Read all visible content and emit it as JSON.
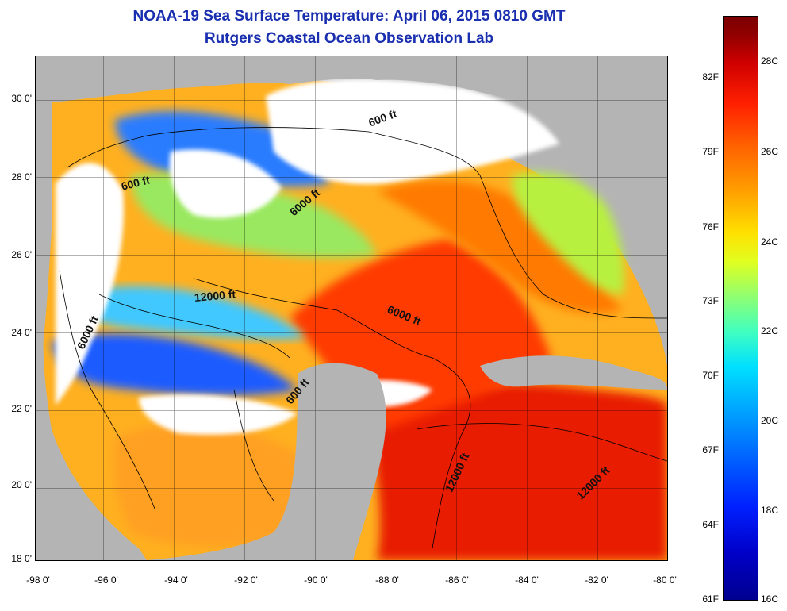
{
  "title": "NOAA-19 Sea Surface Temperature:  April 06, 2015 0810 GMT",
  "subtitle": "Rutgers Coastal Ocean Observation Lab",
  "lat_labels": [
    "30 0'",
    "28 0'",
    "26 0'",
    "24 0'",
    "22 0'",
    "20 0'",
    "18 0'"
  ],
  "lon_labels": [
    "-98 0'",
    "-96 0'",
    "-94 0'",
    "-92 0'",
    "-90 0'",
    "-88 0'",
    "-86 0'",
    "-84 0'",
    "-82 0'",
    "-80 0'"
  ],
  "contour_labels": [
    "600 ft",
    "600 ft",
    "6000 ft",
    "12000 ft",
    "6000 ft",
    "6000 ft",
    "600 ft",
    "12000 ft",
    "12000 ft"
  ],
  "colorbar": {
    "fahrenheit_labels": [
      "82F",
      "79F",
      "76F",
      "73F",
      "70F",
      "67F",
      "64F",
      "61F"
    ],
    "celsius_labels": [
      "28C",
      "26C",
      "24C",
      "22C",
      "20C",
      "18C",
      "16C"
    ],
    "colors": [
      "#00008f",
      "#0060ff",
      "#00e0ff",
      "#e0ff20",
      "#ffa000",
      "#ff2000",
      "#7a0000"
    ]
  },
  "colors": {
    "land": "#b4b4b4",
    "cloud": "#ffffff",
    "title": "#1a2fb0"
  }
}
